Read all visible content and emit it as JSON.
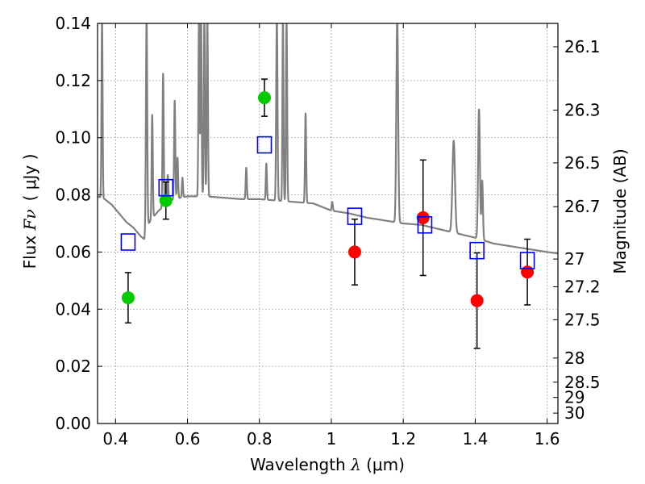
{
  "chart_data": {
    "type": "scatter",
    "xlabel": {
      "prefix": "Wavelength ",
      "symbol": "λ",
      "unit": " (μm)"
    },
    "ylabel": {
      "prefix": "Flux ",
      "symbol": "Fν",
      "unit": "( μJy )"
    },
    "y2label": "Magnitude (AB)",
    "xlim": [
      0.35,
      1.63
    ],
    "ylim": [
      0.0,
      0.14
    ],
    "xticks": [
      0.4,
      0.6,
      0.8,
      1.0,
      1.2,
      1.4,
      1.6
    ],
    "xtick_labels": [
      "0.4",
      "0.6",
      "0.8",
      "1",
      "1.2",
      "1.4",
      "1.6"
    ],
    "yticks": [
      0.0,
      0.02,
      0.04,
      0.06,
      0.08,
      0.1,
      0.12,
      0.14
    ],
    "ytick_labels": [
      "0.00",
      "0.02",
      "0.04",
      "0.06",
      "0.08",
      "0.10",
      "0.12",
      "0.14"
    ],
    "y2ticks": [
      {
        "label": "26.1",
        "mag": 26.1
      },
      {
        "label": "26.3",
        "mag": 26.3
      },
      {
        "label": "26.5",
        "mag": 26.5
      },
      {
        "label": "26.7",
        "mag": 26.7
      },
      {
        "label": "27",
        "mag": 27.0
      },
      {
        "label": "27.2",
        "mag": 27.2
      },
      {
        "label": "27.5",
        "mag": 27.5
      },
      {
        "label": "28",
        "mag": 28.0
      },
      {
        "label": "28.5",
        "mag": 28.5
      },
      {
        "label": "29",
        "mag": 29.0
      },
      {
        "label": "30",
        "mag": 30.0
      }
    ],
    "grid": true,
    "series": [
      {
        "kind": "observed",
        "color": "#00cc00",
        "points": [
          {
            "x": 0.435,
            "y": 0.044,
            "err": 0.0088
          },
          {
            "x": 0.54,
            "y": 0.078,
            "err": 0.0065
          },
          {
            "x": 0.814,
            "y": 0.114,
            "err": 0.0065
          }
        ]
      },
      {
        "kind": "observed",
        "color": "#ff0000",
        "points": [
          {
            "x": 1.065,
            "y": 0.06,
            "err": 0.0115
          },
          {
            "x": 1.255,
            "y": 0.072,
            "err": 0.0202
          },
          {
            "x": 1.405,
            "y": 0.043,
            "err": 0.0167
          },
          {
            "x": 1.545,
            "y": 0.053,
            "err": 0.0115
          }
        ]
      },
      {
        "kind": "model_photometry",
        "color": "#0000ff",
        "points": [
          {
            "x": 0.435,
            "y": 0.0635
          },
          {
            "x": 0.54,
            "y": 0.0825
          },
          {
            "x": 0.814,
            "y": 0.0975
          },
          {
            "x": 1.065,
            "y": 0.0725
          },
          {
            "x": 1.26,
            "y": 0.0695
          },
          {
            "x": 1.405,
            "y": 0.0605
          },
          {
            "x": 1.545,
            "y": 0.057
          }
        ]
      }
    ],
    "model_spectrum": {
      "color": "#808080",
      "continuum": [
        [
          0.35,
          0.0795
        ],
        [
          0.37,
          0.0785
        ],
        [
          0.39,
          0.0765
        ],
        [
          0.41,
          0.0735
        ],
        [
          0.43,
          0.0705
        ],
        [
          0.45,
          0.0685
        ],
        [
          0.47,
          0.0655
        ],
        [
          0.48,
          0.0645
        ],
        [
          0.49,
          0.0695
        ],
        [
          0.5,
          0.0715
        ],
        [
          0.52,
          0.0745
        ],
        [
          0.54,
          0.0765
        ],
        [
          0.56,
          0.0785
        ],
        [
          0.6,
          0.0795
        ],
        [
          0.65,
          0.0795
        ],
        [
          0.7,
          0.079
        ],
        [
          0.75,
          0.0785
        ],
        [
          0.8,
          0.0785
        ],
        [
          0.85,
          0.078
        ],
        [
          0.9,
          0.0775
        ],
        [
          0.95,
          0.077
        ],
        [
          1.0,
          0.0745
        ],
        [
          1.05,
          0.0735
        ],
        [
          1.1,
          0.072
        ],
        [
          1.15,
          0.071
        ],
        [
          1.2,
          0.07
        ],
        [
          1.25,
          0.0695
        ],
        [
          1.3,
          0.068
        ],
        [
          1.35,
          0.0665
        ],
        [
          1.4,
          0.065
        ],
        [
          1.45,
          0.063
        ],
        [
          1.5,
          0.062
        ],
        [
          1.55,
          0.061
        ],
        [
          1.6,
          0.06
        ],
        [
          1.63,
          0.0595
        ]
      ],
      "lines": [
        {
          "x": 0.3625,
          "peak": 0.142,
          "w": 0.0015
        },
        {
          "x": 0.4863,
          "peak": 0.142,
          "w": 0.0018
        },
        {
          "x": 0.502,
          "peak": 0.108,
          "w": 0.0016
        },
        {
          "x": 0.5323,
          "peak": 0.1225,
          "w": 0.0016
        },
        {
          "x": 0.5453,
          "peak": 0.087,
          "w": 0.0016
        },
        {
          "x": 0.5645,
          "peak": 0.113,
          "w": 0.0016
        },
        {
          "x": 0.5724,
          "peak": 0.093,
          "w": 0.0015
        },
        {
          "x": 0.586,
          "peak": 0.086,
          "w": 0.0015
        },
        {
          "x": 0.632,
          "peak": 0.142,
          "w": 0.0016
        },
        {
          "x": 0.6378,
          "peak": 0.142,
          "w": 0.0015
        },
        {
          "x": 0.647,
          "peak": 0.142,
          "w": 0.0016
        },
        {
          "x": 0.6553,
          "peak": 0.142,
          "w": 0.0016
        },
        {
          "x": 0.7635,
          "peak": 0.0895,
          "w": 0.0016
        },
        {
          "x": 0.8193,
          "peak": 0.091,
          "w": 0.0015
        },
        {
          "x": 0.8485,
          "peak": 0.142,
          "w": 0.0018
        },
        {
          "x": 0.8655,
          "peak": 0.142,
          "w": 0.0015
        },
        {
          "x": 0.8755,
          "peak": 0.142,
          "w": 0.0016
        },
        {
          "x": 0.9284,
          "peak": 0.1085,
          "w": 0.0016
        },
        {
          "x": 1.0025,
          "peak": 0.0775,
          "w": 0.0016
        },
        {
          "x": 1.1832,
          "peak": 0.142,
          "w": 0.0025
        },
        {
          "x": 1.3402,
          "peak": 0.099,
          "w": 0.0035
        },
        {
          "x": 1.4106,
          "peak": 0.11,
          "w": 0.0025
        },
        {
          "x": 1.4195,
          "peak": 0.085,
          "w": 0.002
        }
      ]
    }
  }
}
